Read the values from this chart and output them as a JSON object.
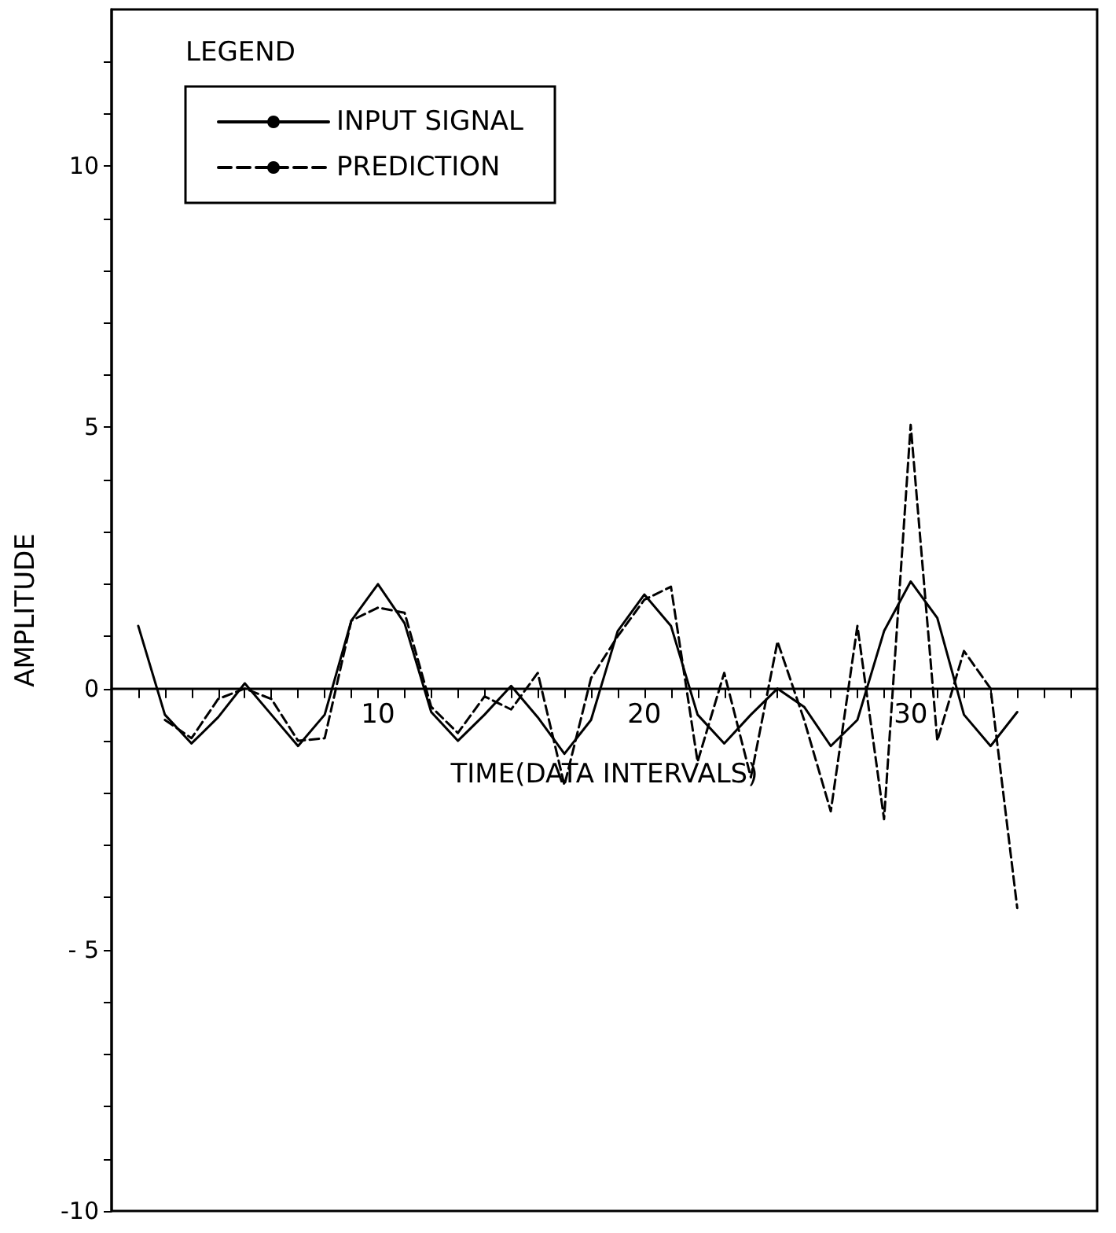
{
  "chart_data": {
    "type": "line",
    "xlabel": "TIME(DATA INTERVALS)",
    "ylabel": "AMPLITUDE",
    "legend_title": "LEGEND",
    "legend": "top left",
    "xlim": [
      0,
      37
    ],
    "ylim": [
      -10,
      13
    ],
    "xticks": [
      {
        "value": 1,
        "label": null
      },
      {
        "value": 2,
        "label": null
      },
      {
        "value": 3,
        "label": null
      },
      {
        "value": 4,
        "label": null
      },
      {
        "value": 5,
        "label": null
      },
      {
        "value": 6,
        "label": null
      },
      {
        "value": 7,
        "label": null
      },
      {
        "value": 8,
        "label": null
      },
      {
        "value": 9,
        "label": null
      },
      10,
      {
        "value": 11,
        "label": null
      },
      {
        "value": 12,
        "label": null
      },
      {
        "value": 13,
        "label": null
      },
      {
        "value": 14,
        "label": null
      },
      {
        "value": 15,
        "label": null
      },
      {
        "value": 16,
        "label": null
      },
      {
        "value": 17,
        "label": null
      },
      {
        "value": 18,
        "label": null
      },
      {
        "value": 19,
        "label": null
      },
      20,
      {
        "value": 21,
        "label": null
      },
      {
        "value": 22,
        "label": null
      },
      {
        "value": 23,
        "label": null
      },
      {
        "value": 24,
        "label": null
      },
      {
        "value": 25,
        "label": null
      },
      {
        "value": 26,
        "label": null
      },
      {
        "value": 27,
        "label": null
      },
      {
        "value": 28,
        "label": null
      },
      {
        "value": 29,
        "label": null
      },
      30,
      {
        "value": 31,
        "label": null
      },
      {
        "value": 32,
        "label": null
      },
      {
        "value": 33,
        "label": null
      },
      {
        "value": 34,
        "label": null
      },
      {
        "value": 35,
        "label": null
      },
      {
        "value": 36,
        "label": null
      }
    ],
    "yticks": [
      -10,
      {
        "value": -9,
        "label": null
      },
      {
        "value": -8,
        "label": null
      },
      {
        "value": -7,
        "label": null
      },
      {
        "value": -6,
        "label": null
      },
      {
        "value": -5,
        "label": "- 5"
      },
      {
        "value": -4,
        "label": null
      },
      {
        "value": -3,
        "label": null
      },
      {
        "value": -2,
        "label": null
      },
      {
        "value": -1,
        "label": null
      },
      0,
      {
        "value": 1,
        "label": null
      },
      {
        "value": 2,
        "label": null
      },
      {
        "value": 3,
        "label": null
      },
      {
        "value": 4,
        "label": null
      },
      5,
      {
        "value": 6,
        "label": null
      },
      {
        "value": 7,
        "label": null
      },
      {
        "value": 8,
        "label": null
      },
      {
        "value": 9,
        "label": null
      },
      10,
      {
        "value": 11,
        "label": null
      },
      {
        "value": 12,
        "label": null
      }
    ],
    "series": [
      {
        "name": "INPUT SIGNAL",
        "color": "#000000",
        "line_style": "solid",
        "x": [
          1,
          2,
          3,
          4,
          5,
          6,
          7,
          8,
          9,
          10,
          11,
          12,
          13,
          14,
          15,
          16,
          17,
          18,
          19,
          20,
          21,
          22,
          23,
          24,
          25,
          26,
          27,
          28,
          29,
          30,
          31,
          32,
          33,
          34
        ],
        "values": [
          1.2,
          -0.5,
          -1.05,
          -0.55,
          0.1,
          -0.5,
          -1.1,
          -0.5,
          1.3,
          2.0,
          1.25,
          -0.45,
          -1.0,
          -0.5,
          0.05,
          -0.55,
          -1.25,
          -0.6,
          1.1,
          1.8,
          1.2,
          -0.5,
          -1.05,
          -0.5,
          0.0,
          -0.35,
          -1.1,
          -0.6,
          1.1,
          2.05,
          1.35,
          -0.5,
          -1.1,
          -0.45
        ]
      },
      {
        "name": "PREDICTION",
        "color": "#000000",
        "line_style": "dashed",
        "x": [
          2,
          3,
          4,
          5,
          6,
          7,
          8,
          9,
          10,
          11,
          12,
          13,
          14,
          15,
          16,
          17,
          18,
          19,
          20,
          21,
          22,
          23,
          24,
          25,
          26,
          27,
          28,
          29,
          30,
          31,
          32,
          33,
          34
        ],
        "values": [
          -0.6,
          -0.95,
          -0.2,
          0.0,
          -0.2,
          -1.0,
          -0.95,
          1.3,
          1.55,
          1.45,
          -0.35,
          -0.85,
          -0.15,
          -0.4,
          0.3,
          -1.85,
          0.2,
          1.0,
          1.7,
          1.95,
          -1.4,
          0.3,
          -1.7,
          0.9,
          -0.6,
          -2.35,
          1.2,
          -2.5,
          5.05,
          -1.0,
          0.72,
          0.0,
          -4.2
        ]
      }
    ]
  }
}
